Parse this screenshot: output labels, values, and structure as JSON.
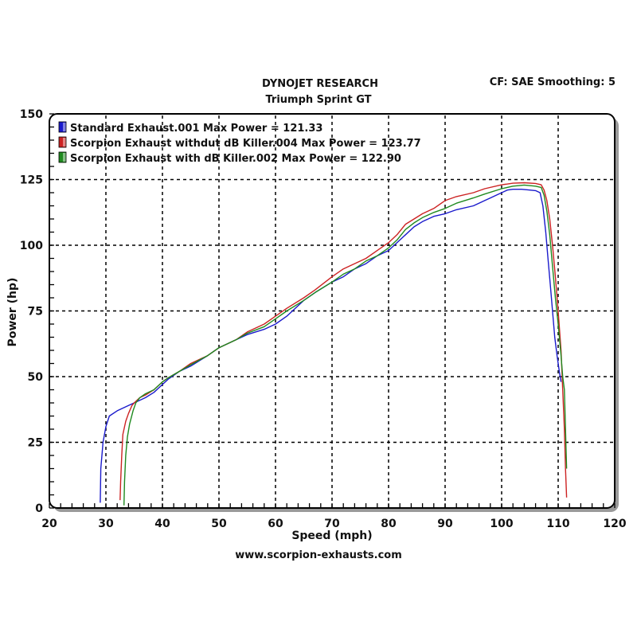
{
  "header": {
    "title": "DYNOJET RESEARCH",
    "subtitle": "Triumph Sprint GT",
    "settings": "CF: SAE  Smoothing: 5"
  },
  "footer": {
    "website": "www.scorpion-exhausts.com"
  },
  "colors": {
    "standard": "#1a1acc",
    "without_db_killer": "#cc2222",
    "with_db_killer": "#1f8a1f",
    "grid": "#000000",
    "frame_shadow": "#9a9a9a"
  },
  "chart_data": {
    "type": "line",
    "title": "DYNOJET RESEARCH - Triumph Sprint GT",
    "subtitle": "CF: SAE  Smoothing: 5",
    "xlabel": "Speed (mph)",
    "ylabel": "Power (hp)",
    "xlim": [
      20,
      120
    ],
    "ylim": [
      0,
      150
    ],
    "xticks": [
      20,
      30,
      40,
      50,
      60,
      70,
      80,
      90,
      100,
      110,
      120
    ],
    "yticks": [
      0,
      25,
      50,
      75,
      100,
      125,
      150
    ],
    "grid": true,
    "legend_position": "top-left inside",
    "series": [
      {
        "name": "Standard Exhaust.001 Max Power = 121.33",
        "max_power": 121.33,
        "color": "#1a1acc",
        "points": [
          [
            29.0,
            2
          ],
          [
            29.1,
            15
          ],
          [
            29.5,
            25
          ],
          [
            30.0,
            31
          ],
          [
            30.6,
            35
          ],
          [
            32,
            37
          ],
          [
            34,
            39
          ],
          [
            35,
            40
          ],
          [
            37,
            42
          ],
          [
            38.5,
            44
          ],
          [
            40,
            47
          ],
          [
            41,
            49
          ],
          [
            43,
            52
          ],
          [
            45,
            54
          ],
          [
            48,
            58
          ],
          [
            50,
            61
          ],
          [
            53,
            64
          ],
          [
            55,
            66
          ],
          [
            58,
            68
          ],
          [
            60,
            70
          ],
          [
            62,
            73
          ],
          [
            63,
            75
          ],
          [
            65,
            79
          ],
          [
            67,
            82
          ],
          [
            70,
            86
          ],
          [
            72,
            88
          ],
          [
            74,
            91
          ],
          [
            76,
            93
          ],
          [
            78,
            96
          ],
          [
            80,
            98
          ],
          [
            81.5,
            101
          ],
          [
            83,
            104
          ],
          [
            84.5,
            107
          ],
          [
            86,
            109
          ],
          [
            88,
            111
          ],
          [
            90,
            112
          ],
          [
            92,
            113.5
          ],
          [
            95,
            115
          ],
          [
            97,
            117
          ],
          [
            98,
            118
          ],
          [
            100,
            120
          ],
          [
            101,
            121
          ],
          [
            102,
            121.3
          ],
          [
            103.5,
            121.3
          ],
          [
            105,
            121
          ],
          [
            106,
            120.8
          ],
          [
            106.8,
            120
          ],
          [
            107.3,
            115
          ],
          [
            107.8,
            105
          ],
          [
            108.2,
            95
          ],
          [
            108.6,
            85
          ],
          [
            109,
            75
          ],
          [
            109.4,
            65
          ],
          [
            109.8,
            58
          ],
          [
            110.2,
            52
          ],
          [
            110.5,
            48
          ]
        ]
      },
      {
        "name": "Scorpion Exhaust withdut dB Killer.004 Max Power = 123.77",
        "max_power": 123.77,
        "color": "#cc2222",
        "points": [
          [
            32.5,
            3
          ],
          [
            32.6,
            10
          ],
          [
            32.8,
            20
          ],
          [
            33,
            28
          ],
          [
            33.5,
            33
          ],
          [
            34,
            36
          ],
          [
            34.6,
            39
          ],
          [
            35,
            40
          ],
          [
            36,
            42
          ],
          [
            37,
            43
          ],
          [
            38.5,
            45
          ],
          [
            40,
            48
          ],
          [
            41,
            49.5
          ],
          [
            43,
            52
          ],
          [
            45,
            55
          ],
          [
            48,
            58
          ],
          [
            50,
            61
          ],
          [
            53,
            64
          ],
          [
            55,
            67
          ],
          [
            58,
            70
          ],
          [
            60,
            73
          ],
          [
            62,
            76
          ],
          [
            65,
            80
          ],
          [
            67,
            83
          ],
          [
            70,
            88
          ],
          [
            72,
            91
          ],
          [
            74,
            93
          ],
          [
            76,
            95
          ],
          [
            78,
            98
          ],
          [
            80,
            101
          ],
          [
            81.5,
            104
          ],
          [
            83,
            108
          ],
          [
            84.5,
            110
          ],
          [
            86,
            112
          ],
          [
            88,
            114
          ],
          [
            90,
            117
          ],
          [
            92,
            118.5
          ],
          [
            95,
            120
          ],
          [
            97,
            121.5
          ],
          [
            100,
            123
          ],
          [
            102,
            123.6
          ],
          [
            104,
            123.8
          ],
          [
            106,
            123.5
          ],
          [
            107,
            123
          ],
          [
            107.5,
            121
          ],
          [
            108,
            117
          ],
          [
            108.5,
            110
          ],
          [
            109,
            100
          ],
          [
            109.5,
            88
          ],
          [
            110,
            75
          ],
          [
            110.5,
            60
          ],
          [
            110.8,
            45
          ],
          [
            111.1,
            30
          ],
          [
            111.3,
            15
          ],
          [
            111.5,
            4
          ]
        ]
      },
      {
        "name": "Scorpion Exhaust with dB Killer.002 Max Power = 122.90",
        "max_power": 122.9,
        "color": "#1f8a1f",
        "points": [
          [
            33.2,
            1
          ],
          [
            33.3,
            10
          ],
          [
            33.5,
            20
          ],
          [
            33.8,
            27
          ],
          [
            34.2,
            32
          ],
          [
            34.8,
            37
          ],
          [
            35.3,
            40
          ],
          [
            36,
            42
          ],
          [
            37,
            43.5
          ],
          [
            38.5,
            45
          ],
          [
            40,
            48
          ],
          [
            41,
            49.5
          ],
          [
            43,
            52
          ],
          [
            45,
            54.5
          ],
          [
            48,
            58
          ],
          [
            50,
            61
          ],
          [
            53,
            64
          ],
          [
            55,
            66.5
          ],
          [
            58,
            69
          ],
          [
            60,
            72
          ],
          [
            62,
            75
          ],
          [
            65,
            79
          ],
          [
            67,
            82
          ],
          [
            70,
            86
          ],
          [
            72,
            89
          ],
          [
            74,
            91
          ],
          [
            76,
            94
          ],
          [
            78,
            96
          ],
          [
            80,
            99
          ],
          [
            81.5,
            102
          ],
          [
            83,
            106
          ],
          [
            84.5,
            108.5
          ],
          [
            86,
            110.5
          ],
          [
            88,
            112.5
          ],
          [
            90,
            114
          ],
          [
            92,
            116
          ],
          [
            95,
            118
          ],
          [
            97,
            119.5
          ],
          [
            100,
            121.5
          ],
          [
            102,
            122.5
          ],
          [
            104,
            122.9
          ],
          [
            106,
            122.5
          ],
          [
            107,
            122
          ],
          [
            107.5,
            119
          ],
          [
            108,
            113
          ],
          [
            108.5,
            104
          ],
          [
            109,
            92
          ],
          [
            109.5,
            80
          ],
          [
            110,
            70
          ],
          [
            110.5,
            58
          ],
          [
            110.8,
            50
          ],
          [
            111.1,
            45
          ],
          [
            111.3,
            30
          ],
          [
            111.5,
            15
          ]
        ]
      }
    ]
  }
}
